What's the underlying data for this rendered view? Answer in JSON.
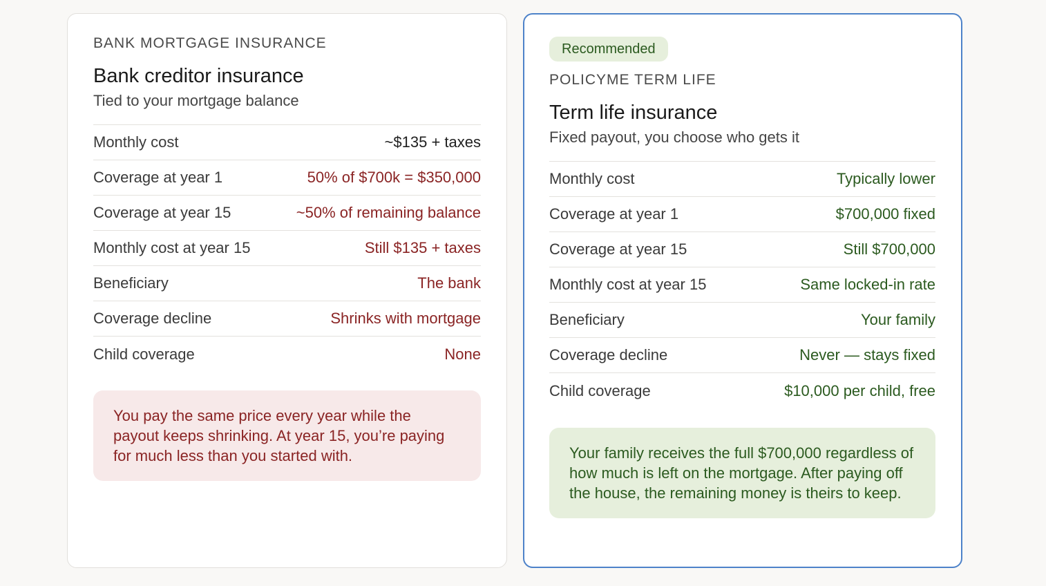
{
  "bank_card": {
    "eyebrow": "BANK MORTGAGE INSURANCE",
    "title": "Bank creditor insurance",
    "subtitle": "Tied to your mortgage balance",
    "rows": [
      {
        "label": "Monthly cost",
        "value": "~$135 + taxes"
      },
      {
        "label": "Coverage at year 1",
        "value": "50% of $700k = $350,000"
      },
      {
        "label": "Coverage at year 15",
        "value": "~50% of remaining balance"
      },
      {
        "label": "Monthly cost at year 15",
        "value": "Still $135 + taxes"
      },
      {
        "label": "Beneficiary",
        "value": "The bank"
      },
      {
        "label": "Coverage decline",
        "value": "Shrinks with mortgage"
      },
      {
        "label": "Child coverage",
        "value": "None"
      }
    ],
    "note": "You pay the same price every year while the payout keeps shrinking. At year 15, you’re paying for much less than you started with."
  },
  "term_card": {
    "badge": "Recommended",
    "eyebrow": "POLICYME TERM LIFE",
    "title": "Term life insurance",
    "subtitle": "Fixed payout, you choose who gets it",
    "rows": [
      {
        "label": "Monthly cost",
        "value": "Typically lower"
      },
      {
        "label": "Coverage at year 1",
        "value": "$700,000 fixed"
      },
      {
        "label": "Coverage at year 15",
        "value": "Still $700,000"
      },
      {
        "label": "Monthly cost at year 15",
        "value": "Same locked-in rate"
      },
      {
        "label": "Beneficiary",
        "value": "Your family"
      },
      {
        "label": "Coverage decline",
        "value": "Never — stays fixed"
      },
      {
        "label": "Child coverage",
        "value": "$10,000 per child, free"
      }
    ],
    "note": "Your family receives the full $700,000 regardless of how much is left on the mortgage. After paying off the house, the remaining money is theirs to keep."
  },
  "colors": {
    "negative": "#8a2424",
    "positive": "#2b5a1f",
    "highlight_border": "#4d82c9"
  }
}
